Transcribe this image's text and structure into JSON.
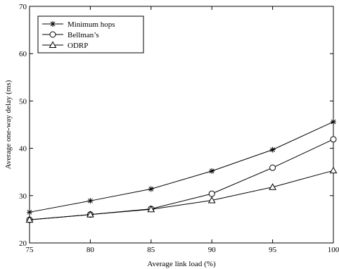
{
  "chart_data": {
    "type": "line",
    "title": "",
    "xlabel": "Average link load (%)",
    "ylabel": "Average one-way delay (ms)",
    "xlim": [
      75,
      100
    ],
    "ylim": [
      20,
      70
    ],
    "xticks": [
      75,
      80,
      85,
      90,
      95,
      100
    ],
    "yticks": [
      20,
      30,
      40,
      50,
      60,
      70
    ],
    "grid": false,
    "legend_position": "top-left",
    "x": [
      75,
      80,
      85,
      90,
      95,
      100
    ],
    "series": [
      {
        "name": "Minimum hops",
        "marker": "star",
        "values": [
          26.5,
          28.9,
          31.4,
          35.2,
          39.7,
          45.6
        ]
      },
      {
        "name": "Bellman’s",
        "marker": "circle",
        "values": [
          24.9,
          26.0,
          27.2,
          30.4,
          35.9,
          41.9
        ]
      },
      {
        "name": "ODRP",
        "marker": "triangle",
        "values": [
          24.9,
          26.0,
          27.1,
          29.0,
          31.8,
          35.3
        ]
      }
    ]
  }
}
